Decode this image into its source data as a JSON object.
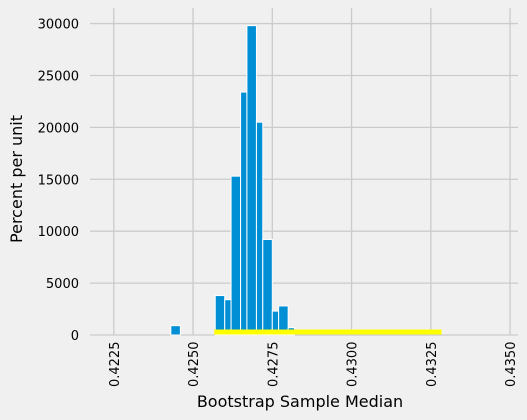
{
  "chart_data": {
    "type": "bar",
    "subtype": "histogram",
    "xlabel": "Bootstrap Sample Median",
    "ylabel": "Percent per unit",
    "xlim": [
      0.42175,
      0.43525
    ],
    "ylim": [
      0,
      31500
    ],
    "x_ticks": [
      0.4225,
      0.425,
      0.4275,
      0.43,
      0.4325,
      0.435
    ],
    "x_tick_labels": [
      "0.4225",
      "0.4250",
      "0.4275",
      "0.4300",
      "0.4325",
      "0.4350"
    ],
    "y_ticks": [
      0,
      5000,
      10000,
      15000,
      20000,
      25000,
      30000
    ],
    "y_tick_labels": [
      "0",
      "5000",
      "10000",
      "15000",
      "20000",
      "25000",
      "30000"
    ],
    "bin_edges": [
      0.4243,
      0.42453,
      0.42476,
      0.42499,
      0.42522,
      0.42545,
      0.42568,
      0.42591,
      0.42614,
      0.42637,
      0.4266,
      0.42683,
      0.42706
    ],
    "bins": [
      {
        "start": 0.4243,
        "end": 0.4246,
        "value": 900
      },
      {
        "start": 0.4249,
        "end": 0.4257,
        "value": 0
      },
      {
        "start": 0.4257,
        "end": 0.426,
        "value": 3800
      },
      {
        "start": 0.426,
        "end": 0.4262,
        "value": 3400
      },
      {
        "start": 0.4262,
        "end": 0.4265,
        "value": 15300
      },
      {
        "start": 0.4265,
        "end": 0.4267,
        "value": 23400
      },
      {
        "start": 0.4267,
        "end": 0.427,
        "value": 29800
      },
      {
        "start": 0.427,
        "end": 0.4272,
        "value": 20500
      },
      {
        "start": 0.4272,
        "end": 0.4275,
        "value": 9200
      },
      {
        "start": 0.4275,
        "end": 0.4277,
        "value": 2300
      },
      {
        "start": 0.4277,
        "end": 0.428,
        "value": 2800
      },
      {
        "start": 0.428,
        "end": 0.4282,
        "value": 700
      }
    ],
    "interval": {
      "low": 0.42567,
      "high": 0.43284
    },
    "grid": true,
    "colors": {
      "bar": "#008fd5",
      "interval": "#ffff00",
      "grid": "#cbcbcb",
      "background": "#f0f0f0"
    }
  }
}
